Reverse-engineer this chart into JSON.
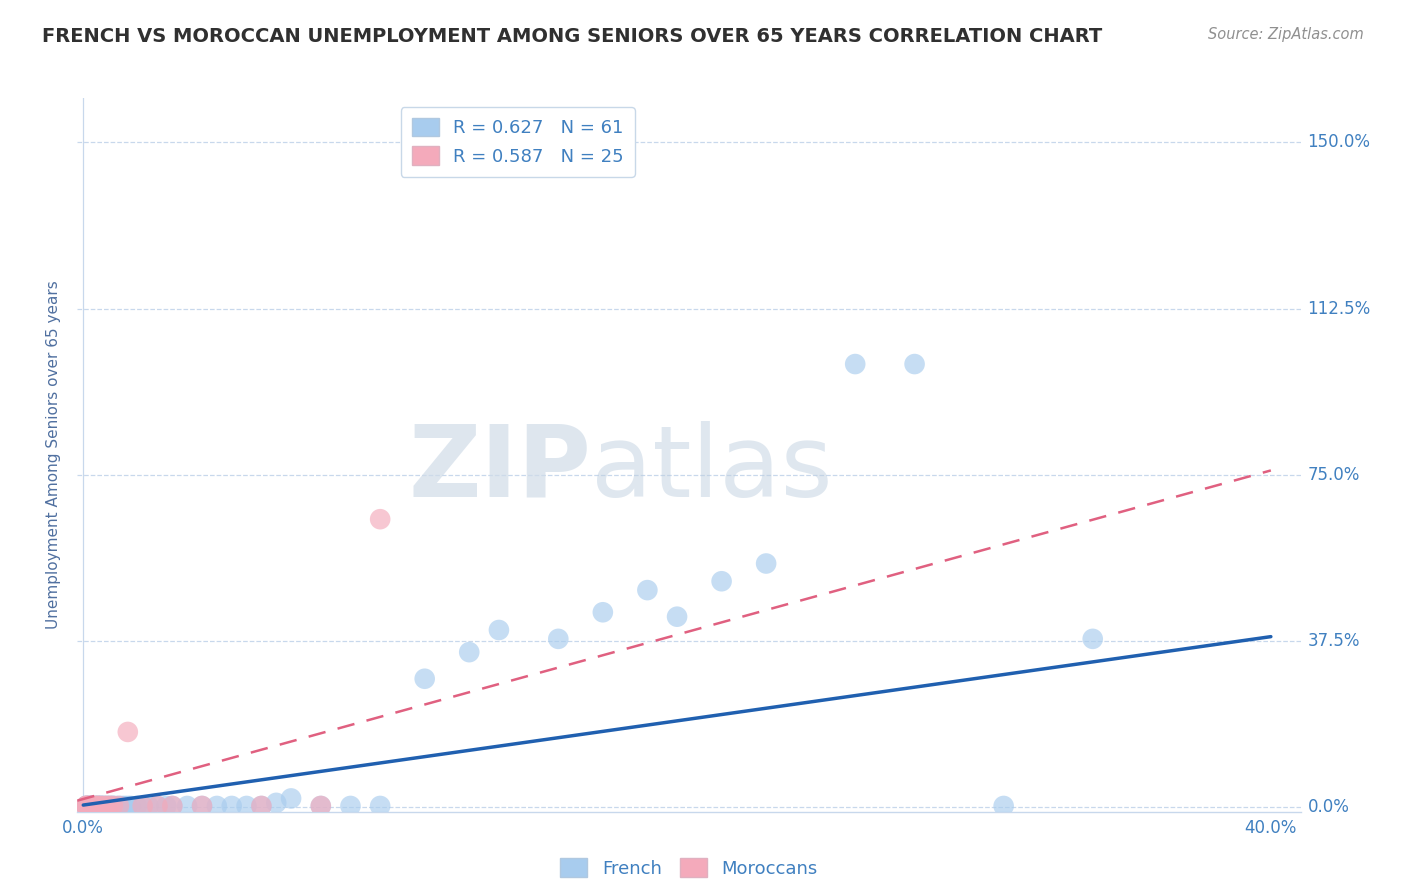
{
  "title": "FRENCH VS MOROCCAN UNEMPLOYMENT AMONG SENIORS OVER 65 YEARS CORRELATION CHART",
  "source": "Source: ZipAtlas.com",
  "ylabel": "Unemployment Among Seniors over 65 years",
  "xlim": [
    -0.002,
    0.41
  ],
  "ylim": [
    -0.01,
    1.6
  ],
  "yticks": [
    0.0,
    0.375,
    0.75,
    1.125,
    1.5
  ],
  "ytick_labels": [
    "0.0%",
    "37.5%",
    "75.0%",
    "112.5%",
    "150.0%"
  ],
  "xtick_labels_bottom": [
    "0.0%",
    "40.0%"
  ],
  "xtick_positions_bottom": [
    0.0,
    0.4
  ],
  "french_R": 0.627,
  "french_N": 61,
  "moroccan_R": 0.587,
  "moroccan_N": 25,
  "french_color": "#A8CCEE",
  "moroccan_color": "#F4AABB",
  "french_line_color": "#2060B0",
  "moroccan_line_color": "#E06080",
  "watermark_zip": "ZIP",
  "watermark_atlas": "atlas",
  "background_color": "#FFFFFF",
  "grid_color": "#C8D8EC",
  "title_color": "#303030",
  "axis_label_color": "#5070A0",
  "tick_color": "#4080C0",
  "french_x": [
    0.001,
    0.001,
    0.001,
    0.002,
    0.002,
    0.002,
    0.003,
    0.003,
    0.003,
    0.004,
    0.004,
    0.005,
    0.005,
    0.005,
    0.006,
    0.006,
    0.006,
    0.007,
    0.007,
    0.008,
    0.008,
    0.009,
    0.009,
    0.01,
    0.01,
    0.011,
    0.012,
    0.013,
    0.014,
    0.015,
    0.016,
    0.018,
    0.02,
    0.022,
    0.025,
    0.028,
    0.03,
    0.035,
    0.04,
    0.045,
    0.05,
    0.055,
    0.06,
    0.065,
    0.07,
    0.08,
    0.09,
    0.1,
    0.115,
    0.13,
    0.14,
    0.16,
    0.175,
    0.19,
    0.2,
    0.215,
    0.23,
    0.26,
    0.28,
    0.31,
    0.34
  ],
  "french_y": [
    0.003,
    0.003,
    0.003,
    0.003,
    0.003,
    0.003,
    0.003,
    0.003,
    0.003,
    0.003,
    0.003,
    0.003,
    0.003,
    0.003,
    0.003,
    0.003,
    0.003,
    0.003,
    0.003,
    0.003,
    0.003,
    0.003,
    0.003,
    0.003,
    0.003,
    0.003,
    0.003,
    0.003,
    0.003,
    0.003,
    0.003,
    0.003,
    0.003,
    0.003,
    0.003,
    0.003,
    0.003,
    0.003,
    0.003,
    0.003,
    0.003,
    0.003,
    0.003,
    0.01,
    0.02,
    0.003,
    0.003,
    0.003,
    0.29,
    0.35,
    0.4,
    0.38,
    0.44,
    0.49,
    0.43,
    0.51,
    0.55,
    1.0,
    1.0,
    0.003,
    0.38
  ],
  "moroccan_x": [
    0.001,
    0.001,
    0.001,
    0.002,
    0.002,
    0.003,
    0.003,
    0.004,
    0.004,
    0.005,
    0.005,
    0.006,
    0.007,
    0.008,
    0.009,
    0.01,
    0.012,
    0.015,
    0.02,
    0.025,
    0.03,
    0.04,
    0.06,
    0.08,
    0.1
  ],
  "moroccan_y": [
    0.003,
    0.003,
    0.003,
    0.003,
    0.003,
    0.003,
    0.003,
    0.003,
    0.003,
    0.003,
    0.003,
    0.003,
    0.003,
    0.003,
    0.003,
    0.003,
    0.003,
    0.17,
    0.003,
    0.003,
    0.003,
    0.003,
    0.003,
    0.003,
    0.65
  ],
  "french_line_x": [
    0.0,
    0.4
  ],
  "french_line_y": [
    0.005,
    0.385
  ],
  "moroccan_line_x": [
    -0.002,
    0.4
  ],
  "moroccan_line_y": [
    0.015,
    0.76
  ]
}
